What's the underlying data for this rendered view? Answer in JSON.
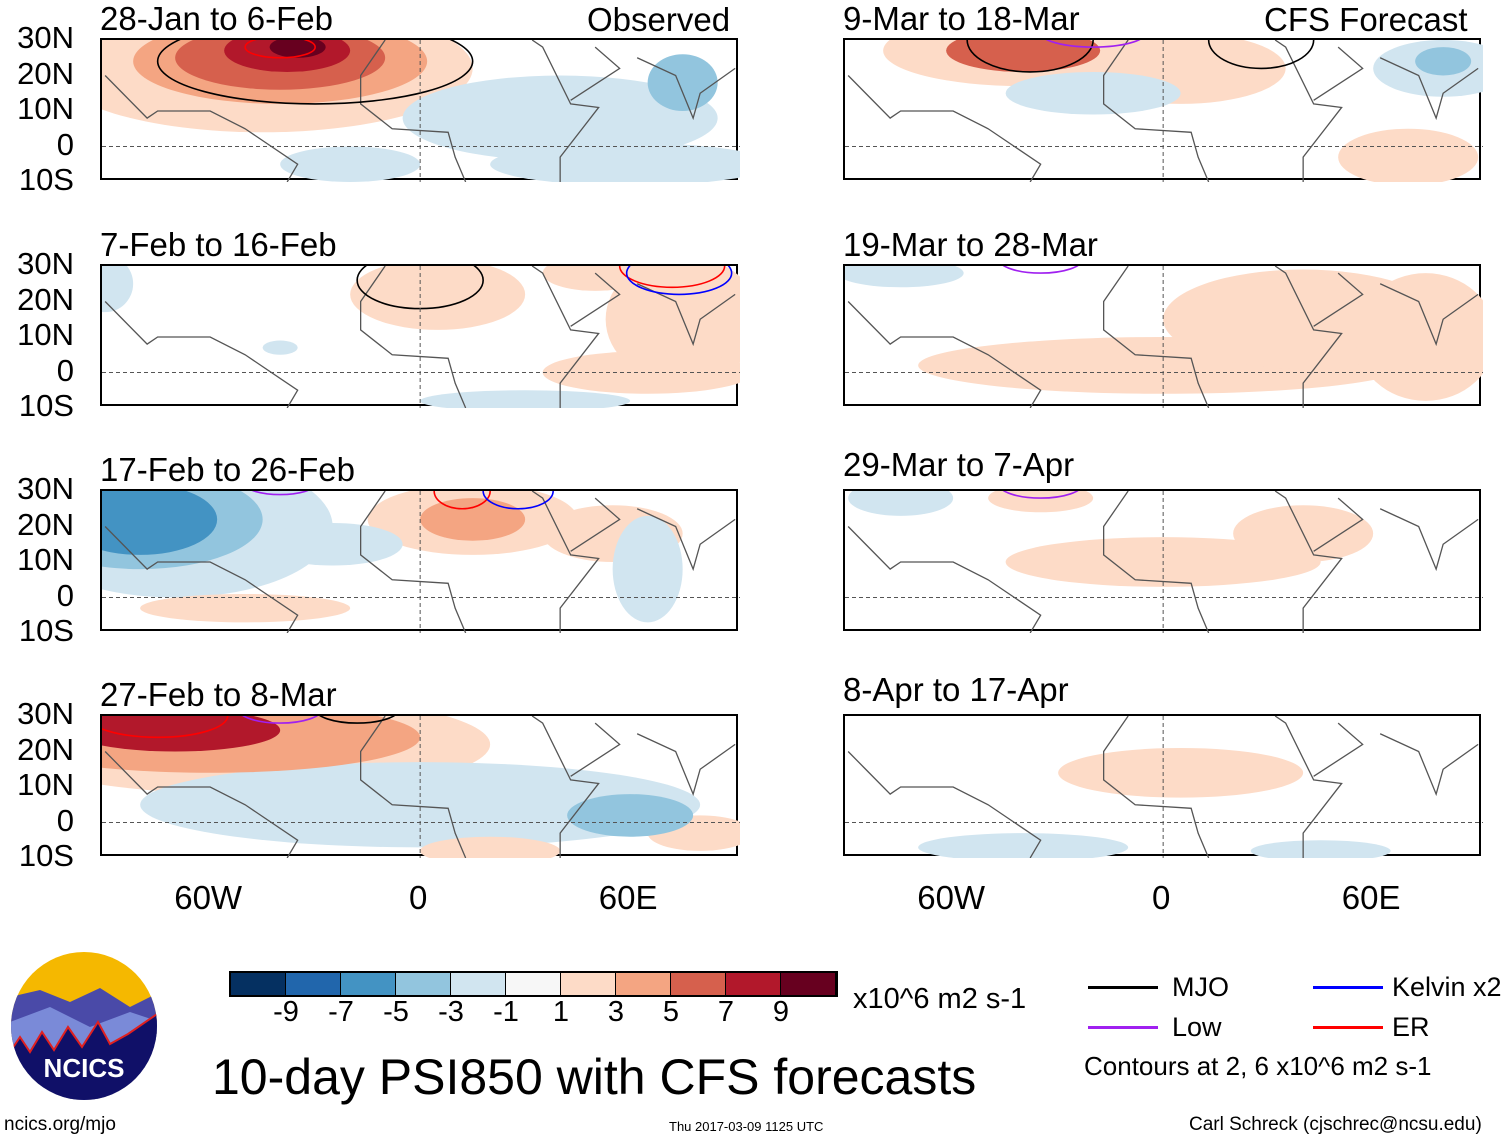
{
  "header": {
    "observed_label": "Observed",
    "forecast_label": "CFS Forecast"
  },
  "panels": [
    {
      "title": "28-Jan to 6-Feb",
      "column": "observed"
    },
    {
      "title": "7-Feb to 16-Feb",
      "column": "observed"
    },
    {
      "title": "17-Feb to 26-Feb",
      "column": "observed"
    },
    {
      "title": "27-Feb to 8-Mar",
      "column": "observed"
    },
    {
      "title": "9-Mar to 18-Mar",
      "column": "forecast"
    },
    {
      "title": "19-Mar to 28-Mar",
      "column": "forecast"
    },
    {
      "title": "29-Mar to 7-Apr",
      "column": "forecast"
    },
    {
      "title": "8-Apr to 17-Apr",
      "column": "forecast"
    }
  ],
  "lat_labels": [
    "30N",
    "20N",
    "10N",
    "0",
    "10S"
  ],
  "lon_labels": [
    "60W",
    "0",
    "60E"
  ],
  "colorbar": {
    "colors": [
      "#053061",
      "#2166ac",
      "#4393c3",
      "#92c5de",
      "#d1e5f0",
      "#f7f7f7",
      "#fddbc7",
      "#f4a582",
      "#d6604d",
      "#b2182b",
      "#67001f"
    ],
    "ticks": [
      "-9",
      "-7",
      "-5",
      "-3",
      "-1",
      "1",
      "3",
      "5",
      "7",
      "9"
    ],
    "units": "x10^6 m2 s-1"
  },
  "legend": {
    "items": [
      {
        "label": "MJO",
        "color": "#000000"
      },
      {
        "label": "Kelvin x2",
        "color": "#0000ff"
      },
      {
        "label": "Low",
        "color": "#a020f0"
      },
      {
        "label": "ER",
        "color": "#ff0000"
      }
    ],
    "note": "Contours at 2, 6 x10^6 m2 s-1"
  },
  "title": "10-day PSI850 with CFS forecasts",
  "logo": {
    "text": "NCICS"
  },
  "footer": {
    "url": "ncics.org/mjo",
    "timestamp": "Thu 2017-03-09 1125 UTC",
    "author": "Carl Schreck (cjschrec@ncsu.edu)"
  }
}
